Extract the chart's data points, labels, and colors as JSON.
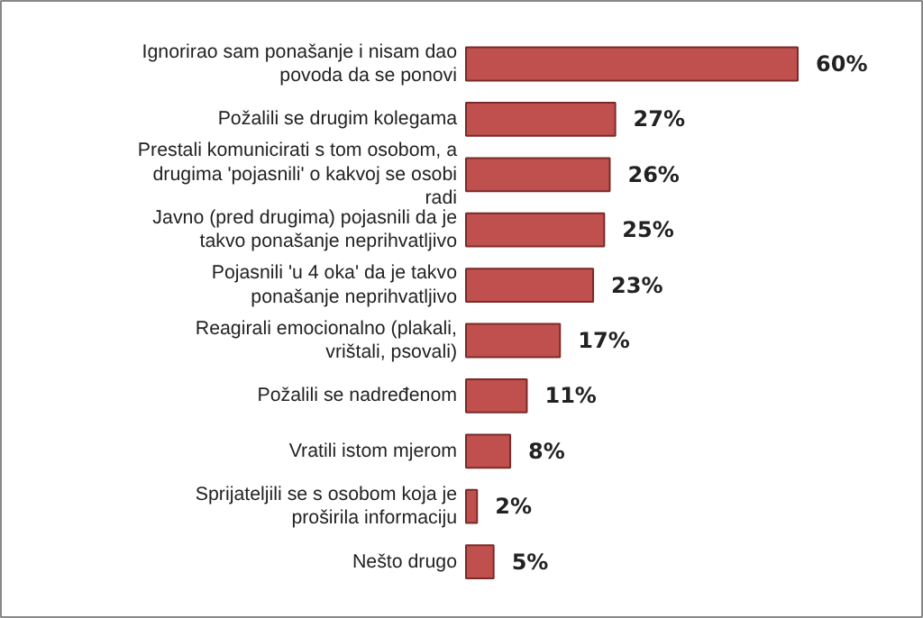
{
  "chart_data": {
    "type": "bar",
    "orientation": "horizontal",
    "categories": [
      "Ignorirao sam ponašanje i nisam dao povoda da se ponovi",
      "Požalili se drugim kolegama",
      "Prestali komunicirati s tom osobom, a drugima 'pojasnili' o kakvoj se osobi radi",
      "Javno (pred drugima) pojasnili da je takvo ponašanje neprihvatljivo",
      "Pojasnili 'u 4 oka' da je takvo ponašanje neprihvatljivo",
      "Reagirali emocionalno (plakali, vrištali, psovali)",
      "Požalili se nadređenom",
      "Vratili istom mjerom",
      "Sprijateljili se s osobom koja je proširila informaciju",
      "Nešto drugo"
    ],
    "values": [
      60,
      27,
      26,
      25,
      23,
      17,
      11,
      8,
      2,
      5
    ],
    "value_labels": [
      "60%",
      "27%",
      "26%",
      "25%",
      "23%",
      "17%",
      "11%",
      "8%",
      "2%",
      "5%"
    ],
    "color": "#c0504d"
  }
}
